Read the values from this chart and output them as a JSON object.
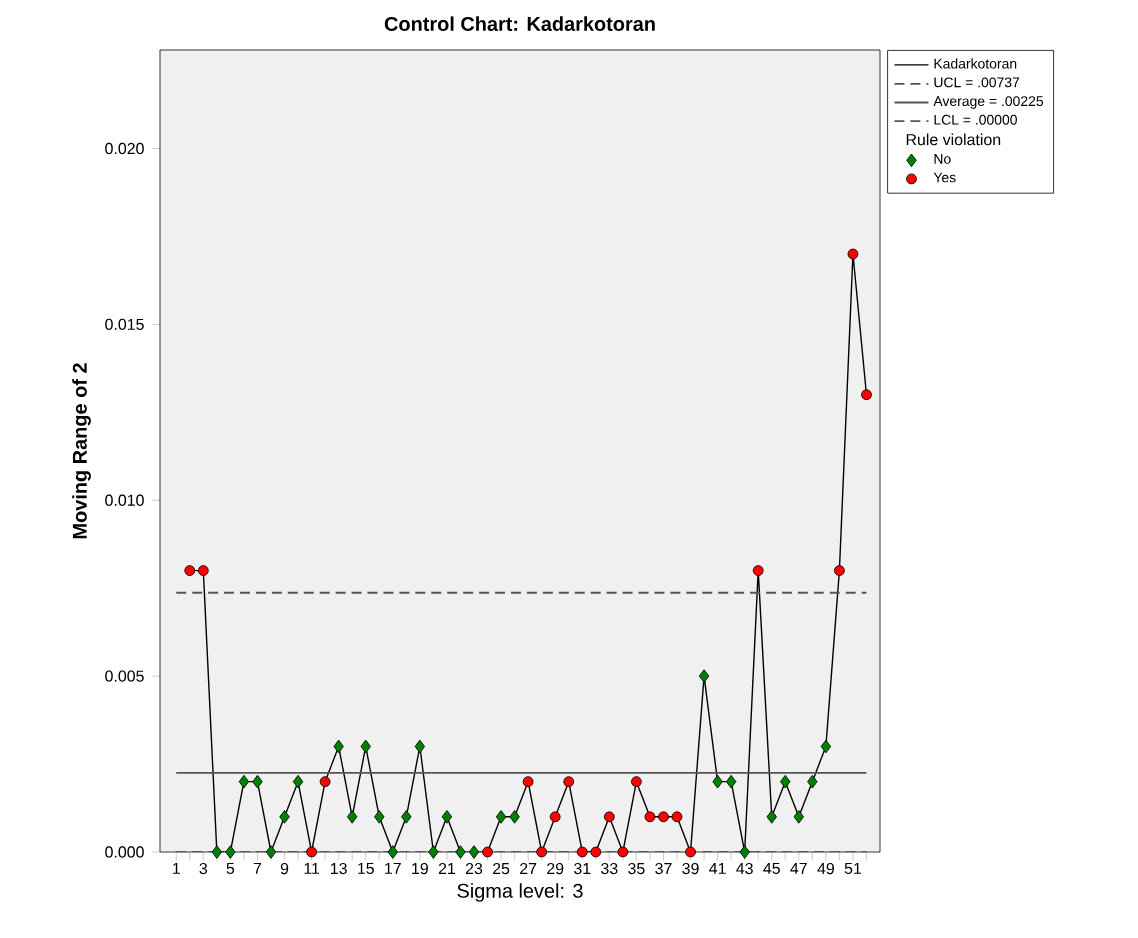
{
  "chart_data": {
    "type": "line",
    "title": "Control Chart: Kadarkotoran",
    "xlabel": "Sigma level: 3",
    "ylabel": "Moving Range of 2",
    "legend_title": "Rule violation",
    "categories": [
      "1",
      null,
      "3",
      null,
      "5",
      null,
      "7",
      null,
      "9",
      null,
      "11",
      null,
      "13",
      null,
      "15",
      null,
      "17",
      null,
      "19",
      null,
      "21",
      null,
      "23",
      null,
      "25",
      null,
      "27",
      null,
      "29",
      null,
      "31",
      null,
      "33",
      null,
      "35",
      null,
      "37",
      null,
      "39",
      null,
      "41",
      null,
      "43",
      null,
      "45",
      null,
      "47",
      null,
      "49",
      null,
      "51",
      null
    ],
    "series": [
      {
        "name": "Kadarkotoran",
        "color": "#000000",
        "marker": "none",
        "values": [
          null,
          0.008,
          0.008,
          0,
          0,
          0.002,
          0.002,
          0,
          0.001,
          0.002,
          0,
          0.002,
          0.003,
          0.001,
          0.003,
          0.001,
          0,
          0.001,
          0.003,
          0,
          0.001,
          0,
          0,
          0,
          0.001,
          0.001,
          0.002,
          0,
          0.001,
          0.002,
          0,
          0,
          0.001,
          0,
          0.002,
          0.001,
          0.001,
          0.001,
          0,
          0.005,
          0.002,
          0.002,
          0,
          0.008,
          0.001,
          0.002,
          0.001,
          0.002,
          0.003,
          0.008,
          0.017,
          0.013
        ]
      },
      {
        "name": "No",
        "type": "scatter",
        "color": "#008000",
        "marker": "diamond",
        "values": [
          null,
          null,
          null,
          0,
          0,
          0.002,
          0.002,
          0,
          0.001,
          0.002,
          null,
          null,
          0.003,
          0.001,
          0.003,
          0.001,
          0,
          0.001,
          0.003,
          0,
          0.001,
          0,
          0,
          null,
          0.001,
          0.001,
          null,
          null,
          null,
          null,
          null,
          null,
          null,
          null,
          null,
          null,
          null,
          null,
          null,
          0.005,
          0.002,
          0.002,
          0,
          null,
          0.001,
          0.002,
          0.001,
          0.002,
          0.003,
          null,
          null,
          null
        ]
      },
      {
        "name": "Yes",
        "type": "scatter",
        "color": "#ff0000",
        "marker": "circle",
        "values": [
          null,
          0.008,
          0.008,
          null,
          null,
          null,
          null,
          null,
          null,
          null,
          0,
          0.002,
          null,
          null,
          null,
          null,
          null,
          null,
          null,
          null,
          null,
          null,
          null,
          0,
          null,
          null,
          0.002,
          0,
          0.001,
          0.002,
          0,
          0,
          0.001,
          0,
          0.002,
          0.001,
          0.001,
          0.001,
          0,
          null,
          null,
          null,
          null,
          0.008,
          null,
          null,
          null,
          null,
          null,
          0.008,
          0.017,
          0.013
        ]
      }
    ],
    "ref_lines": [
      {
        "axis": "y",
        "value": 0.00737,
        "label": "UCL = .00737",
        "color": "#555555",
        "line_style": "dashed"
      },
      {
        "axis": "y",
        "value": 0.00225,
        "label": "Average = .00225",
        "color": "#555555",
        "line_style": "solid"
      },
      {
        "axis": "y",
        "value": 0,
        "label": "LCL = .00000",
        "color": "#555555",
        "line_style": "dashed"
      }
    ],
    "ylim": [
      0,
      0.0228
    ],
    "yticks": [
      {
        "value": 0,
        "label": "0.000"
      },
      {
        "value": 0.005,
        "label": "0.005"
      },
      {
        "value": 0.01,
        "label": "0.010"
      },
      {
        "value": 0.015,
        "label": "0.015"
      },
      {
        "value": 0.02,
        "label": "0.020"
      }
    ],
    "grid": false,
    "legend": "right"
  }
}
